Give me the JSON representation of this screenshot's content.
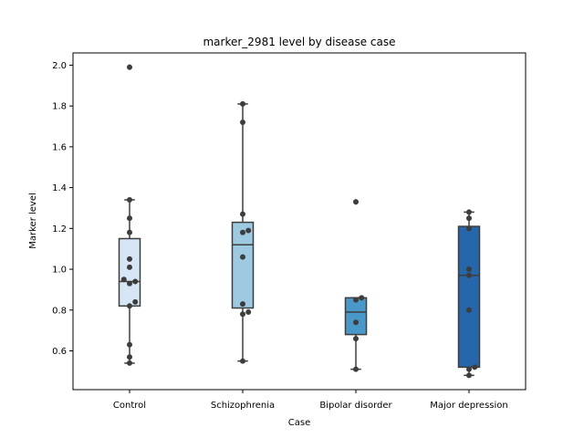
{
  "chart_data": {
    "type": "box",
    "title": "marker_2981 level by disease case",
    "xlabel": "Case",
    "ylabel": "Marker level",
    "ylim": [
      0.41,
      2.06
    ],
    "yticks": [
      "0.6",
      "0.8",
      "1.0",
      "1.2",
      "1.4",
      "1.6",
      "1.8",
      "2.0"
    ],
    "grid": false,
    "categories": [
      "Control",
      "Schizophrenia",
      "Bipolar disorder",
      "Major depression"
    ],
    "colors": [
      "#d6e6f4",
      "#9ecae1",
      "#4a98c9",
      "#2666aa"
    ],
    "boxes": [
      {
        "q1": 0.82,
        "median": 0.94,
        "q3": 1.15,
        "whisker_low": 0.54,
        "whisker_high": 1.34,
        "outliers": [
          1.99
        ]
      },
      {
        "q1": 0.81,
        "median": 1.12,
        "q3": 1.23,
        "whisker_low": 0.55,
        "whisker_high": 1.81,
        "outliers": []
      },
      {
        "q1": 0.68,
        "median": 0.79,
        "q3": 0.86,
        "whisker_low": 0.51,
        "whisker_high": 0.86,
        "outliers": [
          1.33
        ]
      },
      {
        "q1": 0.52,
        "median": 0.97,
        "q3": 1.21,
        "whisker_low": 0.48,
        "whisker_high": 1.28,
        "outliers": []
      }
    ],
    "points": [
      [
        0.54,
        0.57,
        0.63,
        0.82,
        0.84,
        0.93,
        0.94,
        0.95,
        1.01,
        1.05,
        1.18,
        1.25,
        1.34,
        1.99
      ],
      [
        0.55,
        0.78,
        0.79,
        0.83,
        1.06,
        1.18,
        1.19,
        1.27,
        1.72,
        1.81
      ],
      [
        0.51,
        0.66,
        0.74,
        0.85,
        0.86,
        1.33
      ],
      [
        0.48,
        0.51,
        0.52,
        0.8,
        0.97,
        1.0,
        1.2,
        1.25,
        1.28
      ]
    ]
  }
}
